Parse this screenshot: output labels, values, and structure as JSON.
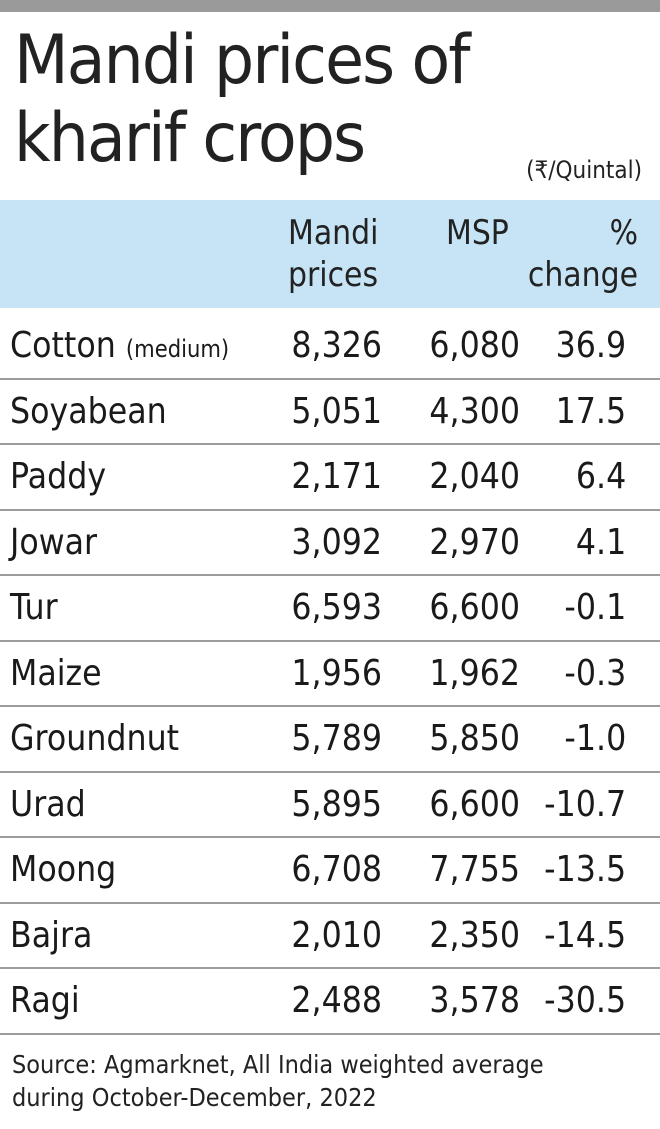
{
  "chart_data": {
    "type": "table",
    "title": "Mandi prices of kharif crops",
    "unit": "(₹/Quintal)",
    "columns": [
      "",
      "Mandi prices",
      "MSP",
      "% change"
    ],
    "column_headers": {
      "mandi_line1": "Mandi",
      "mandi_line2": "prices",
      "msp": "MSP",
      "change_line1": "%",
      "change_line2": "change"
    },
    "rows": [
      {
        "crop": "Cotton",
        "qualifier": "(medium)",
        "mandi": "8,326",
        "msp": "6,080",
        "change": "36.9"
      },
      {
        "crop": "Soyabean",
        "qualifier": "",
        "mandi": "5,051",
        "msp": "4,300",
        "change": "17.5"
      },
      {
        "crop": "Paddy",
        "qualifier": "",
        "mandi": "2,171",
        "msp": "2,040",
        "change": "6.4"
      },
      {
        "crop": "Jowar",
        "qualifier": "",
        "mandi": "3,092",
        "msp": "2,970",
        "change": "4.1"
      },
      {
        "crop": "Tur",
        "qualifier": "",
        "mandi": "6,593",
        "msp": "6,600",
        "change": "-0.1"
      },
      {
        "crop": "Maize",
        "qualifier": "",
        "mandi": "1,956",
        "msp": "1,962",
        "change": "-0.3"
      },
      {
        "crop": "Groundnut",
        "qualifier": "",
        "mandi": "5,789",
        "msp": "5,850",
        "change": "-1.0"
      },
      {
        "crop": "Urad",
        "qualifier": "",
        "mandi": "5,895",
        "msp": "6,600",
        "change": "-10.7"
      },
      {
        "crop": "Moong",
        "qualifier": "",
        "mandi": "6,708",
        "msp": "7,755",
        "change": "-13.5"
      },
      {
        "crop": "Bajra",
        "qualifier": "",
        "mandi": "2,010",
        "msp": "2,350",
        "change": "-14.5"
      },
      {
        "crop": "Ragi",
        "qualifier": "",
        "mandi": "2,488",
        "msp": "3,578",
        "change": "-30.5"
      }
    ],
    "source_line1": "Source: Agmarknet,   All India weighted average",
    "source_line2": "during October-December, 2022"
  },
  "colors": {
    "header_band": "#c6e4f5",
    "top_bar": "#9a9a9a",
    "row_divider": "#9c9c9c",
    "text": "#1a1a1a"
  }
}
